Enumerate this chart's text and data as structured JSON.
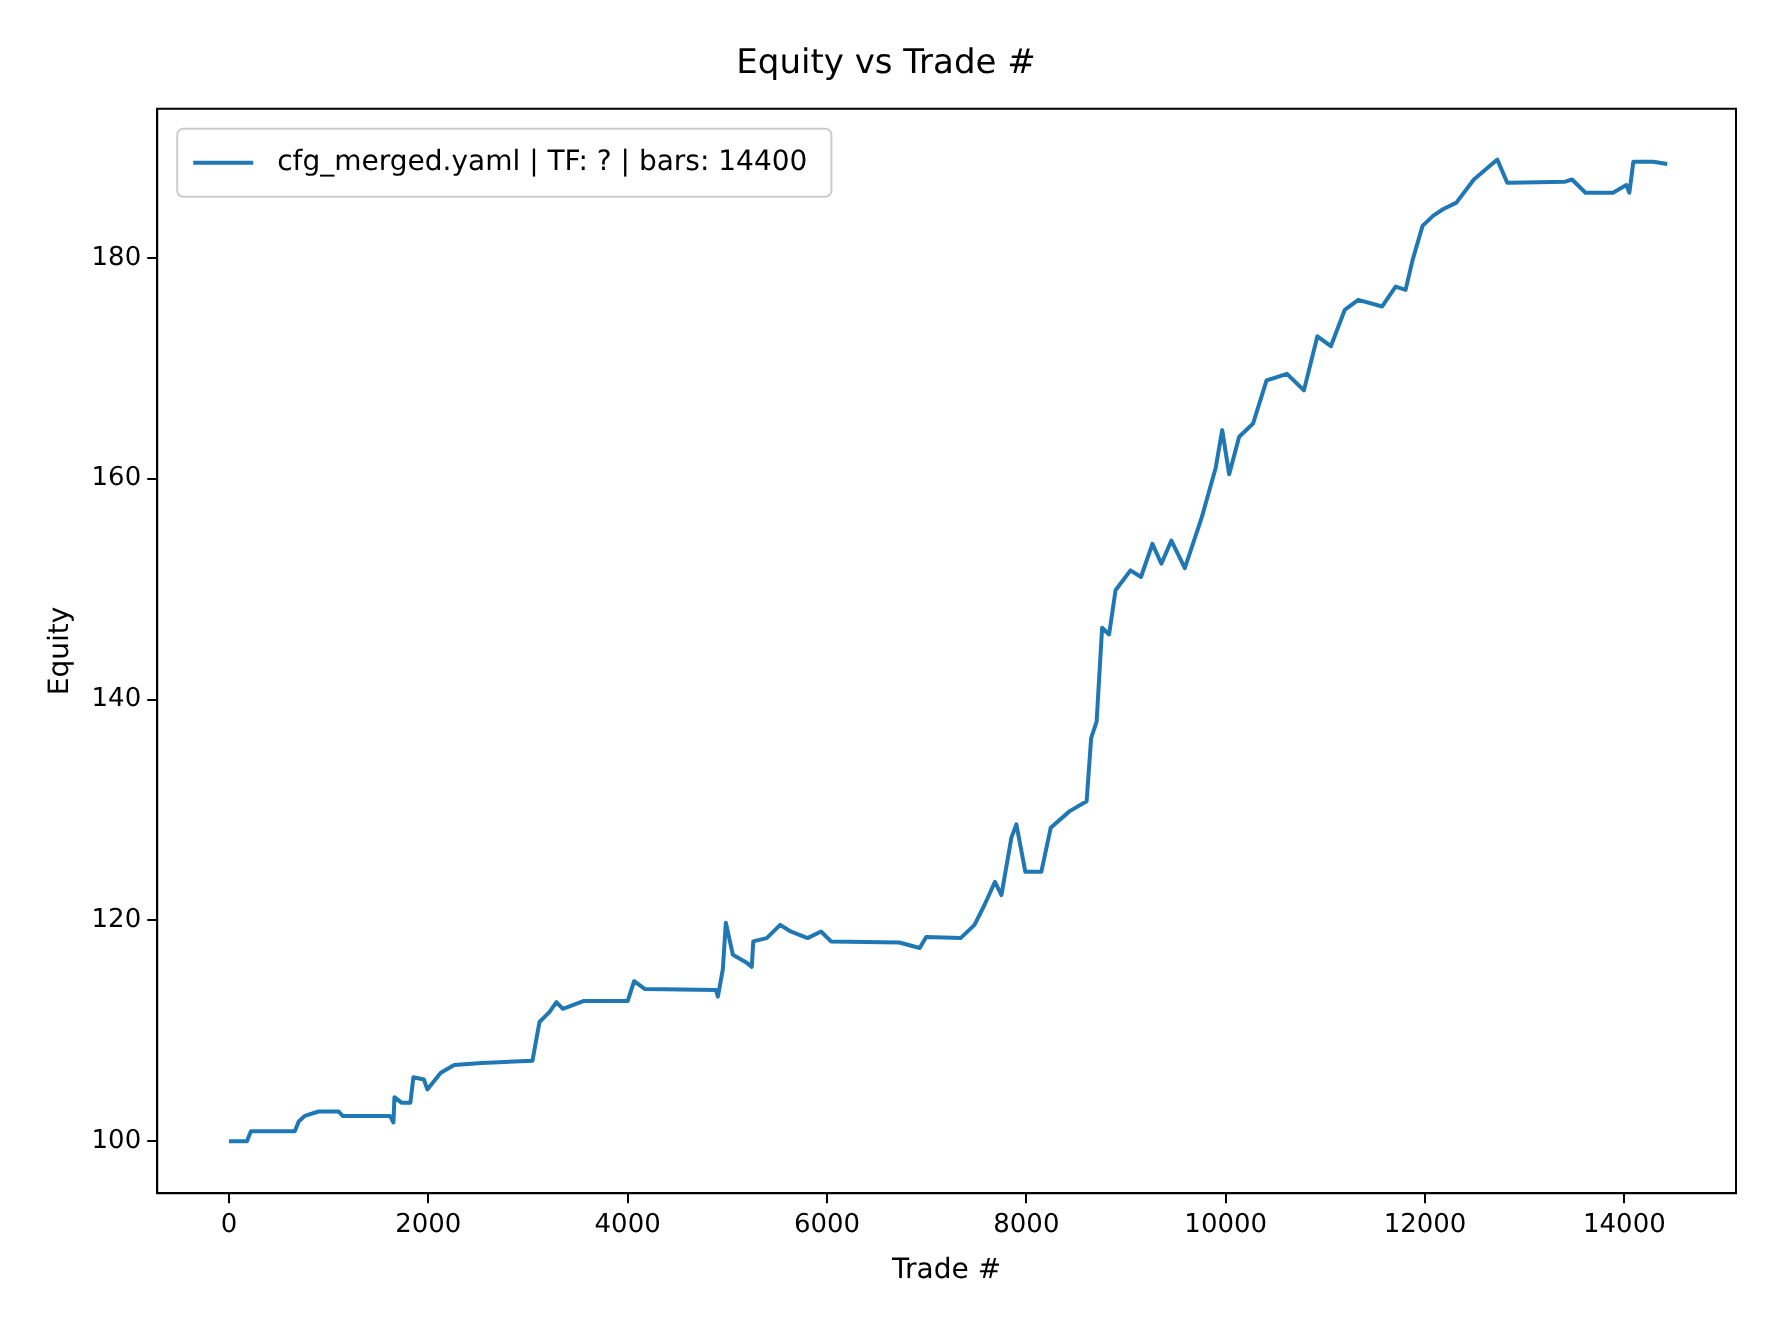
{
  "chart_data": {
    "type": "line",
    "title": "Equity vs Trade #",
    "xlabel": "Trade #",
    "ylabel": "Equity",
    "xlim": [
      -720,
      15120
    ],
    "ylim": [
      95.3,
      193.5
    ],
    "xticks": [
      0,
      2000,
      4000,
      6000,
      8000,
      10000,
      12000,
      14000
    ],
    "yticks": [
      100,
      120,
      140,
      160,
      180
    ],
    "grid": false,
    "legend": "top left",
    "marker": "none",
    "line_style": "solid",
    "series": [
      {
        "name": "cfg_merged.yaml | TF: ? | bars: 14400",
        "color": "#1f77b4",
        "x": [
          0,
          180,
          220,
          660,
          700,
          760,
          900,
          1100,
          1140,
          1615,
          1650,
          1660,
          1730,
          1820,
          1850,
          1955,
          1990,
          2125,
          2260,
          2535,
          3045,
          3115,
          3215,
          3285,
          3350,
          3555,
          4000,
          4065,
          4170,
          4885,
          4905,
          4955,
          4985,
          5055,
          5190,
          5245,
          5260,
          5395,
          5530,
          5635,
          5805,
          5940,
          6040,
          6725,
          6930,
          6995,
          7340,
          7480,
          7580,
          7685,
          7750,
          7850,
          7900,
          7990,
          8150,
          8245,
          8435,
          8605,
          8650,
          8705,
          8760,
          8830,
          8895,
          9045,
          9150,
          9265,
          9355,
          9455,
          9525,
          9590,
          9760,
          9900,
          9965,
          10035,
          10135,
          10275,
          10410,
          10615,
          10785,
          10920,
          11055,
          11195,
          11330,
          11570,
          11705,
          11805,
          11875,
          11975,
          12080,
          12180,
          12315,
          12490,
          12725,
          12825,
          13405,
          13475,
          13610,
          13885,
          14020,
          14050,
          14090,
          14290,
          14430
        ],
        "values": [
          100,
          100,
          100.9,
          100.9,
          101.8,
          102.3,
          102.7,
          102.7,
          102.3,
          102.3,
          101.7,
          104,
          103.5,
          103.5,
          105.8,
          105.6,
          104.7,
          106.2,
          106.9,
          107.1,
          107.3,
          110.8,
          111.7,
          112.6,
          112,
          112.7,
          112.7,
          114.5,
          113.8,
          113.7,
          113.1,
          115.6,
          119.8,
          116.9,
          116.2,
          115.8,
          118.1,
          118.4,
          119.6,
          119,
          118.4,
          119,
          118.1,
          118,
          117.5,
          118.5,
          118.4,
          119.6,
          121.4,
          123.5,
          122.3,
          127.5,
          128.7,
          124.4,
          124.4,
          128.4,
          129.9,
          130.8,
          136.5,
          138,
          146.5,
          145.9,
          149.9,
          151.7,
          151.1,
          154.1,
          152.3,
          154.4,
          153.1,
          151.9,
          156.5,
          161,
          164.4,
          160.4,
          163.8,
          165,
          168.9,
          169.5,
          168,
          172.9,
          172,
          175.3,
          176.2,
          175.6,
          177.4,
          177.1,
          179.8,
          182.9,
          183.8,
          184.4,
          185,
          187.1,
          188.9,
          186.8,
          186.9,
          187.1,
          185.9,
          185.9,
          186.6,
          185.9,
          188.7,
          188.7,
          188.5
        ]
      }
    ]
  }
}
